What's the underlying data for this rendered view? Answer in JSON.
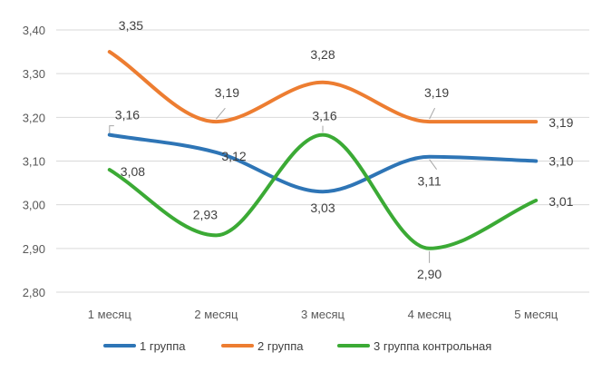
{
  "chart_data": {
    "type": "line",
    "title": "",
    "xlabel": "",
    "ylabel": "",
    "categories": [
      "1 месяц",
      "2 месяц",
      "3 месяц",
      "4 месяц",
      "5 месяц"
    ],
    "ylim": [
      2.8,
      3.4
    ],
    "yticks": [
      "2,80",
      "2,90",
      "3,00",
      "3,10",
      "3,20",
      "3,30",
      "3,40"
    ],
    "grid": true,
    "smooth": true,
    "legend_position": "bottom",
    "series": [
      {
        "name": "1 группа",
        "color": "#2E75B6",
        "values": [
          3.16,
          3.12,
          3.03,
          3.11,
          3.1
        ],
        "labels": [
          "3,16",
          "3,12",
          "3,03",
          "3,11",
          "3,10"
        ]
      },
      {
        "name": "2 группа",
        "color": "#ED7D31",
        "values": [
          3.35,
          3.19,
          3.28,
          3.19,
          3.19
        ],
        "labels": [
          "3,35",
          "3,19",
          "3,28",
          "3,19",
          "3,19"
        ]
      },
      {
        "name": "3 группа контрольная",
        "color": "#3BAA35",
        "values": [
          3.08,
          2.93,
          3.16,
          2.9,
          3.01
        ],
        "labels": [
          "3,08",
          "2,93",
          "3,16",
          "2,90",
          "3,01"
        ]
      }
    ]
  }
}
